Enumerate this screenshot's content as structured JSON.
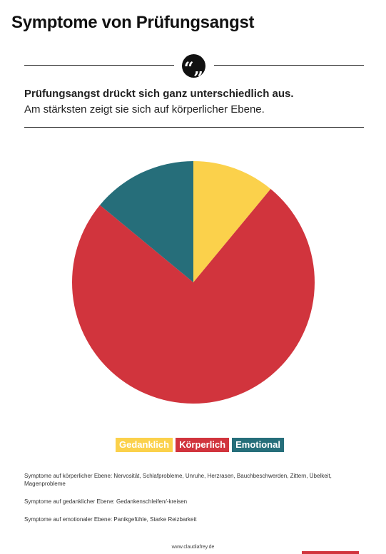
{
  "header": {
    "title": "Symptome von Prüfungsangst",
    "quote_icon": "quote-icon",
    "quote_glyph": "“„"
  },
  "intro": {
    "line1": "Prüfungsangst drückt sich ganz unterschiedlich aus.",
    "line2": "Am stärksten zeigt sie sich auf körperlicher Ebene."
  },
  "chart_data": {
    "type": "pie",
    "title": "",
    "categories": [
      "Gedanklich",
      "Körperlich",
      "Emotional"
    ],
    "values": [
      11,
      75,
      14
    ],
    "colors": [
      "#fbd14b",
      "#d1343d",
      "#266e7a"
    ],
    "legend_placement": "bottom"
  },
  "notes": [
    "Symptome auf körperlicher Ebene: Nervosität, Schlafprobleme, Unruhe, Herzrasen, Bauchbeschwerden, Zittern, Übelkeit, Magenprobleme",
    "Symptome auf gedanklicher Ebene: Gedankenschleifen/-kreisen",
    "Symptome auf emotionaler Ebene: Panikgefühle, Starke Reizbarkeit"
  ],
  "footer": {
    "url": "www.claudiafrey.de"
  }
}
